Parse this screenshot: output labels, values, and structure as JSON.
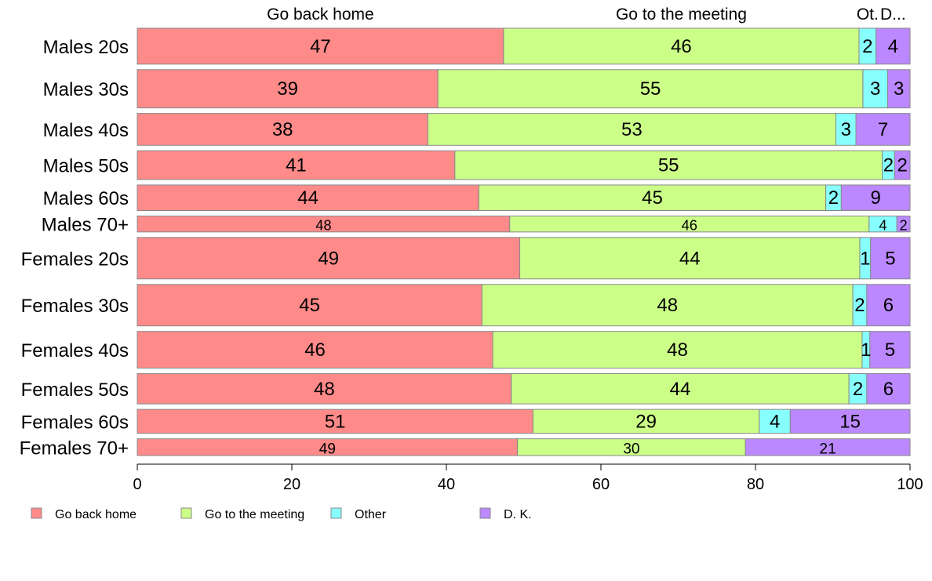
{
  "chart_data": {
    "type": "bar",
    "orientation": "horizontal",
    "stacked": true,
    "percent_stacked": true,
    "title": "",
    "xlabel": "",
    "ylabel": "",
    "xlim": [
      0,
      100
    ],
    "x_ticks": [
      0,
      20,
      40,
      60,
      80,
      100
    ],
    "x_tick_labels": [
      "0",
      "20",
      "40",
      "60",
      "80",
      "100"
    ],
    "grid": false,
    "legend_position": "bottom",
    "categories": [
      "Males 20s",
      "Males 30s",
      "Males 40s",
      "Males 50s",
      "Males 60s",
      "Males 70+",
      "Females 20s",
      "Females 30s",
      "Females 40s",
      "Females 50s",
      "Females 60s",
      "Females 70+"
    ],
    "series": [
      {
        "name": "Go back home",
        "color": "#ff8a8a",
        "values": [
          47.4,
          38.9,
          37.6,
          41.1,
          44.2,
          48.2,
          49.5,
          44.6,
          46.0,
          48.4,
          51.2,
          49.2
        ],
        "labels": [
          "47",
          "39",
          "38",
          "41",
          "44",
          "48",
          "49",
          "45",
          "46",
          "48",
          "51",
          "49"
        ]
      },
      {
        "name": "Go to the meeting",
        "color": "#ccff88",
        "values": [
          46.0,
          55.0,
          52.8,
          55.3,
          44.9,
          46.5,
          44.0,
          48.0,
          47.8,
          43.7,
          29.3,
          29.5
        ],
        "labels": [
          "46",
          "55",
          "53",
          "55",
          "45",
          "46",
          "44",
          "48",
          "48",
          "44",
          "29",
          "30"
        ]
      },
      {
        "name": "Other",
        "color": "#88ffff",
        "values": [
          2.2,
          3.2,
          2.6,
          1.6,
          2.0,
          3.6,
          1.4,
          1.8,
          1.0,
          2.3,
          4.0,
          0
        ],
        "labels": [
          "2",
          "3",
          "3",
          "2",
          "2",
          "4",
          "1",
          "2",
          "1",
          "2",
          "4",
          ""
        ]
      },
      {
        "name": "D. K.",
        "color": "#bb88ff",
        "values": [
          4.4,
          2.9,
          7.0,
          2.0,
          8.9,
          1.7,
          5.1,
          5.6,
          5.2,
          5.6,
          15.5,
          21.3
        ],
        "labels": [
          "4",
          "3",
          "7",
          "2",
          "9",
          "2",
          "5",
          "6",
          "5",
          "6",
          "15",
          "21"
        ]
      }
    ],
    "top_labels": [
      "Go back home",
      "Go to the meeting",
      "Ot.",
      "D..."
    ],
    "row_weights": [
      45,
      48,
      40,
      36,
      32,
      20,
      52,
      52,
      46,
      38,
      30,
      21
    ]
  }
}
